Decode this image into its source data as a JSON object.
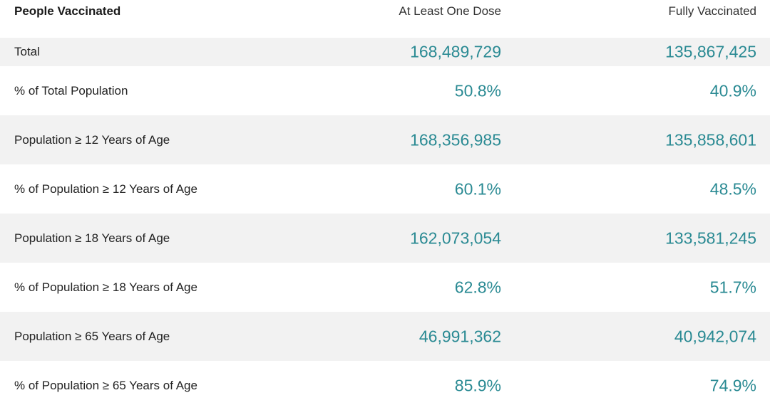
{
  "chart_data": {
    "type": "table",
    "columns": [
      "People Vaccinated",
      "At Least One Dose",
      "Fully Vaccinated"
    ],
    "rows": [
      {
        "label": "Total",
        "at_least_one_dose": "168,489,729",
        "fully_vaccinated": "135,867,425"
      },
      {
        "label": "% of Total Population",
        "at_least_one_dose": "50.8%",
        "fully_vaccinated": "40.9%"
      },
      {
        "label": "Population ≥ 12 Years of Age",
        "at_least_one_dose": "168,356,985",
        "fully_vaccinated": "135,858,601"
      },
      {
        "label": "% of Population ≥ 12 Years of Age",
        "at_least_one_dose": "60.1%",
        "fully_vaccinated": "48.5%"
      },
      {
        "label": "Population ≥ 18 Years of Age",
        "at_least_one_dose": "162,073,054",
        "fully_vaccinated": "133,581,245"
      },
      {
        "label": "% of Population ≥ 18 Years of Age",
        "at_least_one_dose": "62.8%",
        "fully_vaccinated": "51.7%"
      },
      {
        "label": "Population ≥ 65 Years of Age",
        "at_least_one_dose": "46,991,362",
        "fully_vaccinated": "40,942,074"
      },
      {
        "label": "% of Population ≥ 65 Years of Age",
        "at_least_one_dose": "85.9%",
        "fully_vaccinated": "74.9%"
      }
    ],
    "colors": {
      "value_text": "#2a8a93",
      "shaded_row": "#f2f2f2"
    }
  }
}
